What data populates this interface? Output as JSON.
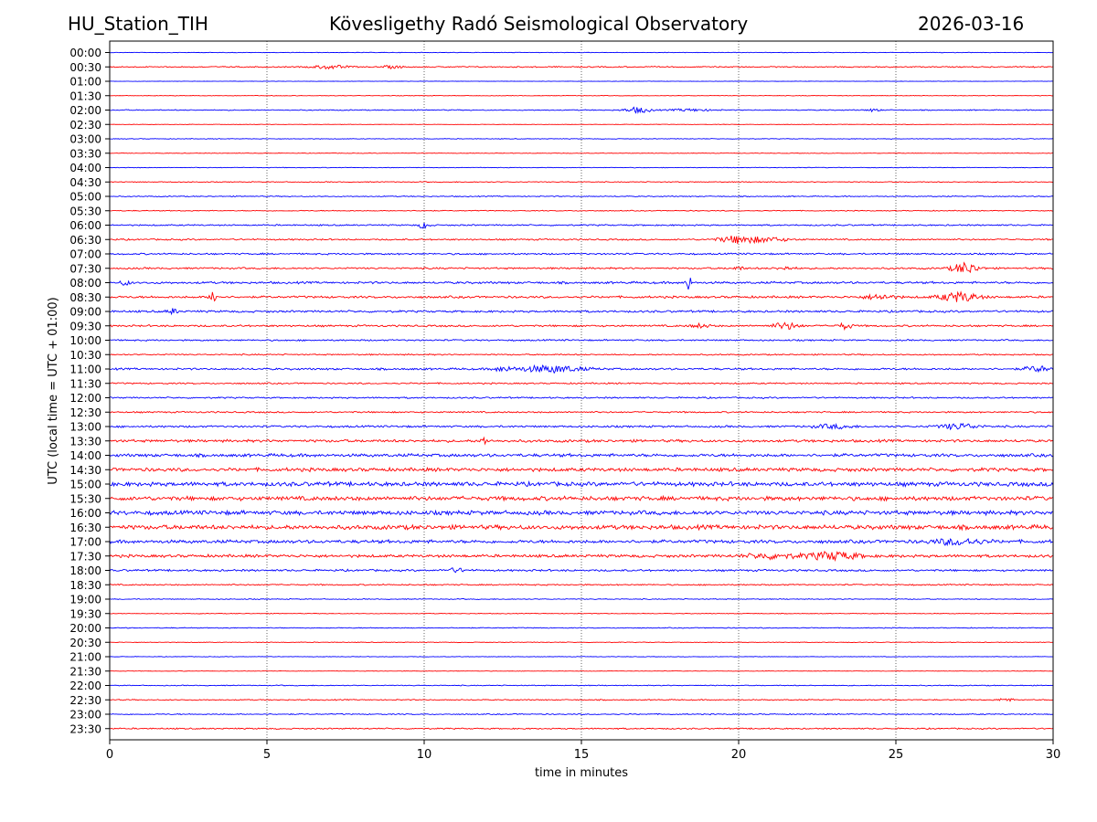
{
  "header": {
    "station": "HU_Station_TIH",
    "observatory": "Kövesligethy Radó Seismological Observatory",
    "date": "2026-03-16"
  },
  "chart_data": {
    "type": "helicorder",
    "title": "Kövesligethy Radó Seismological Observatory",
    "xlabel": "time in minutes",
    "ylabel": "UTC (local time = UTC + 01:00)",
    "xlim": [
      0,
      30
    ],
    "xticks": [
      0,
      5,
      10,
      15,
      20,
      25,
      30
    ],
    "vertical_grid": [
      5,
      10,
      15,
      20,
      25
    ],
    "row_labels": [
      "00:00",
      "00:30",
      "01:00",
      "01:30",
      "02:00",
      "02:30",
      "03:00",
      "03:30",
      "04:00",
      "04:30",
      "05:00",
      "05:30",
      "06:00",
      "06:30",
      "07:00",
      "07:30",
      "08:00",
      "08:30",
      "09:00",
      "09:30",
      "10:00",
      "10:30",
      "11:00",
      "11:30",
      "12:00",
      "12:30",
      "13:00",
      "13:30",
      "14:00",
      "14:30",
      "15:00",
      "15:30",
      "16:00",
      "16:30",
      "17:00",
      "17:30",
      "18:00",
      "18:30",
      "19:00",
      "19:30",
      "20:00",
      "20:30",
      "21:00",
      "21:30",
      "22:00",
      "22:30",
      "23:00",
      "23:30"
    ],
    "trace_colors": [
      "#0000ff",
      "#ff0000"
    ],
    "noise_levels": [
      0.25,
      0.55,
      0.15,
      0.25,
      0.45,
      0.2,
      0.3,
      0.25,
      0.3,
      0.4,
      0.45,
      0.4,
      0.65,
      0.7,
      0.75,
      0.8,
      1.0,
      1.0,
      0.95,
      0.85,
      0.7,
      0.6,
      0.9,
      0.65,
      0.7,
      0.7,
      0.9,
      1.2,
      1.4,
      1.6,
      1.9,
      1.9,
      1.9,
      2.0,
      1.5,
      1.3,
      0.9,
      0.6,
      0.4,
      0.3,
      0.4,
      0.3,
      0.25,
      0.2,
      0.4,
      0.5,
      0.5,
      0.6
    ],
    "events": [
      {
        "row": 1,
        "t": 7.0,
        "amp": 2.0,
        "width": 0.5
      },
      {
        "row": 1,
        "t": 9.0,
        "amp": 1.4,
        "width": 0.3
      },
      {
        "row": 4,
        "t": 16.8,
        "amp": 3.0,
        "width": 0.4
      },
      {
        "row": 4,
        "t": 18.5,
        "amp": 1.2,
        "width": 0.6
      },
      {
        "row": 4,
        "t": 24.3,
        "amp": 1.5,
        "width": 0.2
      },
      {
        "row": 12,
        "t": 10.0,
        "amp": 4.0,
        "width": 0.15
      },
      {
        "row": 13,
        "t": 20.0,
        "amp": 4.0,
        "width": 0.6
      },
      {
        "row": 13,
        "t": 21.0,
        "amp": 2.0,
        "width": 0.6
      },
      {
        "row": 15,
        "t": 27.2,
        "amp": 6.0,
        "width": 0.4
      },
      {
        "row": 15,
        "t": 20.0,
        "amp": 1.5,
        "width": 0.2
      },
      {
        "row": 15,
        "t": 21.5,
        "amp": 1.5,
        "width": 0.3
      },
      {
        "row": 16,
        "t": 18.4,
        "amp": 10.0,
        "width": 0.08
      },
      {
        "row": 16,
        "t": 0.5,
        "amp": 2.5,
        "width": 0.15
      },
      {
        "row": 17,
        "t": 3.3,
        "amp": 9.0,
        "width": 0.1
      },
      {
        "row": 17,
        "t": 27.0,
        "amp": 5.0,
        "width": 0.6
      },
      {
        "row": 17,
        "t": 24.5,
        "amp": 2.5,
        "width": 0.5
      },
      {
        "row": 18,
        "t": 2.0,
        "amp": 3.0,
        "width": 0.15
      },
      {
        "row": 19,
        "t": 21.5,
        "amp": 3.5,
        "width": 0.4
      },
      {
        "row": 19,
        "t": 23.4,
        "amp": 3.5,
        "width": 0.2
      },
      {
        "row": 19,
        "t": 18.8,
        "amp": 2.0,
        "width": 0.3
      },
      {
        "row": 22,
        "t": 14.0,
        "amp": 3.5,
        "width": 1.0
      },
      {
        "row": 22,
        "t": 29.5,
        "amp": 3.0,
        "width": 0.4
      },
      {
        "row": 22,
        "t": 12.5,
        "amp": 2.0,
        "width": 0.3
      },
      {
        "row": 26,
        "t": 27.0,
        "amp": 3.0,
        "width": 0.6
      },
      {
        "row": 26,
        "t": 23.0,
        "amp": 2.0,
        "width": 0.6
      },
      {
        "row": 27,
        "t": 11.9,
        "amp": 4.0,
        "width": 0.1
      },
      {
        "row": 34,
        "t": 27.0,
        "amp": 3.0,
        "width": 0.8
      },
      {
        "row": 35,
        "t": 23.0,
        "amp": 4.0,
        "width": 0.8
      },
      {
        "row": 35,
        "t": 21.0,
        "amp": 2.5,
        "width": 0.8
      },
      {
        "row": 36,
        "t": 11.0,
        "amp": 2.0,
        "width": 0.3
      },
      {
        "row": 45,
        "t": 28.5,
        "amp": 2.0,
        "width": 0.2
      }
    ]
  }
}
